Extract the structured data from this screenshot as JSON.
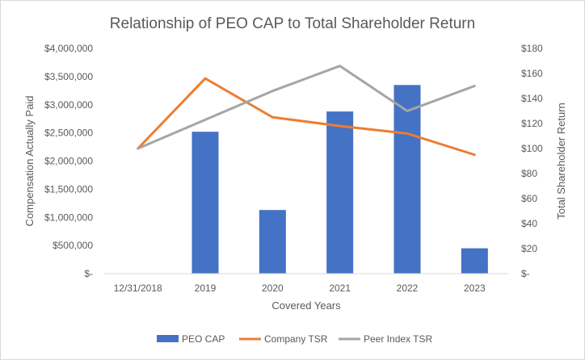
{
  "chart_data": {
    "type": "bar+line",
    "title": "Relationship of PEO CAP to Total Shareholder Return",
    "xlabel": "Covered Years",
    "ylabel": "Compensation Actually Paid",
    "y2label": "Total Shareholder Return",
    "categories": [
      "12/31/2018",
      "2019",
      "2020",
      "2021",
      "2022",
      "2023"
    ],
    "ylim": [
      0,
      4000000
    ],
    "y2lim": [
      0,
      180
    ],
    "y_ticks": [
      0,
      500000,
      1000000,
      1500000,
      2000000,
      2500000,
      3000000,
      3500000,
      4000000
    ],
    "y_tick_labels": [
      "$-",
      "$500,000",
      "$1,000,000",
      "$1,500,000",
      "$2,000,000",
      "$2,500,000",
      "$3,000,000",
      "$3,500,000",
      "$4,000,000"
    ],
    "y2_ticks": [
      0,
      20,
      40,
      60,
      80,
      100,
      120,
      140,
      160,
      180
    ],
    "y2_tick_labels": [
      "$-",
      "$20",
      "$40",
      "$60",
      "$80",
      "$100",
      "$120",
      "$140",
      "$160",
      "$180"
    ],
    "series": [
      {
        "name": "PEO CAP",
        "kind": "bar",
        "axis": "left",
        "color": "#4472c4",
        "values": [
          null,
          2520000,
          1130000,
          2880000,
          3350000,
          450000
        ]
      },
      {
        "name": "Company TSR",
        "kind": "line",
        "axis": "right",
        "color": "#ed7d31",
        "values": [
          100,
          156,
          125,
          118,
          112,
          95
        ]
      },
      {
        "name": "Peer Index TSR",
        "kind": "line",
        "axis": "right",
        "color": "#a5a5a5",
        "values": [
          100,
          123,
          146,
          166,
          130,
          150
        ]
      }
    ],
    "legend_position": "bottom",
    "grid": false
  }
}
